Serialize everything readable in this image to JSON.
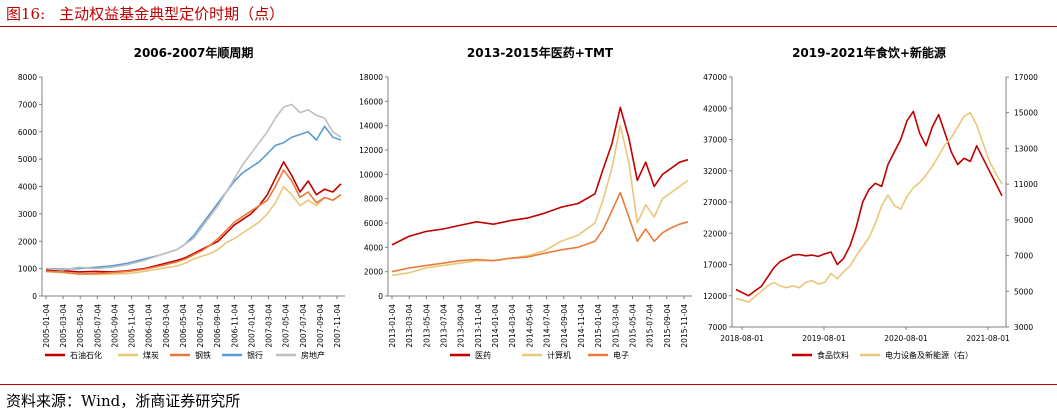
{
  "figure": {
    "number": "图16:",
    "title": "主动权益基金典型定价时期（点）"
  },
  "source": "资料来源：Wind，浙商证券研究所",
  "chart_data": [
    {
      "type": "line",
      "title": "2006-2007年顺周期",
      "ylim": [
        0,
        8000
      ],
      "yticks": [
        "0",
        "1000",
        "2000",
        "3000",
        "4000",
        "5000",
        "6000",
        "7000",
        "8000"
      ],
      "xticks": [
        "2005-01-04",
        "2005-03-04",
        "2005-05-04",
        "2005-07-04",
        "2005-09-04",
        "2005-11-04",
        "2006-01-04",
        "2006-03-04",
        "2006-05-04",
        "2006-07-04",
        "2006-09-04",
        "2006-11-04",
        "2007-01-04",
        "2007-03-04",
        "2007-05-04",
        "2007-07-04",
        "2007-09-04",
        "2007-11-04"
      ],
      "x": [
        0,
        2,
        4,
        6,
        8,
        10,
        12,
        14,
        16,
        17,
        18,
        19,
        20,
        21,
        22,
        23,
        24,
        25,
        26,
        27,
        28,
        29,
        30,
        31,
        32,
        33,
        34,
        35,
        36
      ],
      "series": [
        {
          "name": "石油石化",
          "color": "#c00000",
          "values": [
            950,
            930,
            880,
            900,
            880,
            920,
            1000,
            1150,
            1300,
            1400,
            1550,
            1700,
            1850,
            2000,
            2300,
            2600,
            2800,
            3000,
            3300,
            3700,
            4300,
            4900,
            4400,
            3800,
            4200,
            3700,
            3900,
            3800,
            4100
          ]
        },
        {
          "name": "煤炭",
          "color": "#e8c77a",
          "values": [
            900,
            850,
            800,
            780,
            800,
            820,
            900,
            1000,
            1100,
            1200,
            1350,
            1450,
            1550,
            1700,
            1950,
            2100,
            2300,
            2500,
            2700,
            3000,
            3400,
            4000,
            3700,
            3300,
            3500,
            3300,
            3600,
            3500,
            3700
          ]
        },
        {
          "name": "钢铁",
          "color": "#e87b3c",
          "values": [
            900,
            880,
            800,
            820,
            850,
            900,
            980,
            1100,
            1250,
            1350,
            1500,
            1650,
            1850,
            2100,
            2400,
            2700,
            2900,
            3100,
            3300,
            3500,
            4000,
            4600,
            4200,
            3600,
            3800,
            3400,
            3600,
            3500,
            3700
          ]
        },
        {
          "name": "银行",
          "color": "#5b9bd5",
          "values": [
            1000,
            980,
            1000,
            1050,
            1100,
            1200,
            1350,
            1500,
            1700,
            1900,
            2200,
            2600,
            3000,
            3400,
            3800,
            4200,
            4500,
            4700,
            4900,
            5200,
            5500,
            5600,
            5800,
            5900,
            6000,
            5700,
            6200,
            5800,
            5700
          ]
        },
        {
          "name": "房地产",
          "color": "#bfbfbf",
          "values": [
            1000,
            950,
            1050,
            1000,
            1050,
            1150,
            1300,
            1500,
            1700,
            1900,
            2100,
            2500,
            2900,
            3300,
            3800,
            4300,
            4800,
            5200,
            5600,
            6000,
            6500,
            6900,
            7000,
            6700,
            6800,
            6600,
            6500,
            6000,
            5800
          ]
        }
      ]
    },
    {
      "type": "line",
      "title": "2013-2015年医药+TMT",
      "ylim": [
        0,
        18000
      ],
      "yticks": [
        "0",
        "2000",
        "4000",
        "6000",
        "8000",
        "10000",
        "12000",
        "14000",
        "16000",
        "18000"
      ],
      "xticks": [
        "2013-01-04",
        "2013-03-04",
        "2013-05-04",
        "2013-07-04",
        "2013-09-04",
        "2013-11-04",
        "2014-01-04",
        "2014-03-04",
        "2014-05-04",
        "2014-07-04",
        "2014-09-04",
        "2014-11-04",
        "2015-01-04",
        "2015-03-04",
        "2015-05-04",
        "2015-07-04",
        "2015-09-04",
        "2015-11-04"
      ],
      "x": [
        0,
        2,
        4,
        6,
        8,
        10,
        12,
        14,
        16,
        18,
        20,
        22,
        24,
        25,
        26,
        27,
        28,
        29,
        30,
        31,
        32,
        33,
        34,
        35
      ],
      "series": [
        {
          "name": "医药",
          "color": "#c00000",
          "values": [
            4200,
            4900,
            5300,
            5500,
            5800,
            6100,
            5900,
            6200,
            6400,
            6800,
            7300,
            7600,
            8400,
            10500,
            12500,
            15500,
            13000,
            9500,
            11000,
            9000,
            10000,
            10500,
            11000,
            11200
          ]
        },
        {
          "name": "计算机",
          "color": "#e8c77a",
          "values": [
            1700,
            1900,
            2300,
            2500,
            2700,
            2900,
            2900,
            3100,
            3300,
            3700,
            4500,
            5000,
            6000,
            8000,
            10500,
            14000,
            11000,
            6000,
            7500,
            6500,
            8000,
            8500,
            9000,
            9500
          ]
        },
        {
          "name": "电子",
          "color": "#e87b3c",
          "values": [
            2000,
            2300,
            2500,
            2700,
            2900,
            3000,
            2900,
            3100,
            3200,
            3500,
            3800,
            4000,
            4500,
            5500,
            7000,
            8500,
            6500,
            4500,
            5500,
            4500,
            5200,
            5600,
            5900,
            6100
          ]
        }
      ]
    },
    {
      "type": "line",
      "title": "2019-2021年食饮+新能源",
      "ylim": [
        7000,
        47000
      ],
      "ylim_right": [
        3000,
        17000
      ],
      "yticks": [
        "7000",
        "12000",
        "17000",
        "22000",
        "27000",
        "32000",
        "37000",
        "42000",
        "47000"
      ],
      "yticks_right": [
        "3000",
        "5000",
        "7000",
        "9000",
        "11000",
        "13000",
        "15000",
        "17000"
      ],
      "xticks": [
        "2018-08-01",
        "2019-08-01",
        "2020-08-01",
        "2021-08-01"
      ],
      "x": [
        0,
        1,
        2,
        3,
        4,
        5,
        6,
        7,
        8,
        9,
        10,
        11,
        12,
        13,
        14,
        15,
        16,
        17,
        18,
        19,
        20,
        21,
        22,
        23,
        24,
        25,
        26,
        27,
        28,
        29,
        30,
        31,
        32,
        33,
        34,
        35,
        36,
        37,
        38,
        39,
        40,
        41,
        42
      ],
      "series": [
        {
          "name": "食品饮料",
          "color": "#c00000",
          "axis": "left",
          "values": [
            13000,
            12500,
            12000,
            12800,
            13500,
            15000,
            16500,
            17500,
            18000,
            18500,
            18600,
            18400,
            18500,
            18300,
            18700,
            19000,
            17000,
            18000,
            20000,
            23000,
            27000,
            29000,
            30000,
            29500,
            33000,
            35000,
            37000,
            40000,
            41500,
            38000,
            36000,
            39000,
            41000,
            38000,
            35000,
            33000,
            34000,
            33500,
            36000,
            34000,
            32000,
            30000,
            28000
          ]
        },
        {
          "name": "电力设备及新能源（右）",
          "color": "#e8c77a",
          "axis": "right",
          "values": [
            4600,
            4500,
            4400,
            4700,
            5000,
            5300,
            5500,
            5300,
            5200,
            5300,
            5200,
            5500,
            5600,
            5400,
            5500,
            6000,
            5700,
            6100,
            6400,
            7000,
            7500,
            8000,
            8800,
            9800,
            10400,
            9800,
            9600,
            10300,
            10800,
            11100,
            11500,
            12000,
            12600,
            13200,
            13600,
            14200,
            14800,
            15000,
            14300,
            13300,
            12300,
            11600,
            11000
          ]
        }
      ]
    }
  ]
}
